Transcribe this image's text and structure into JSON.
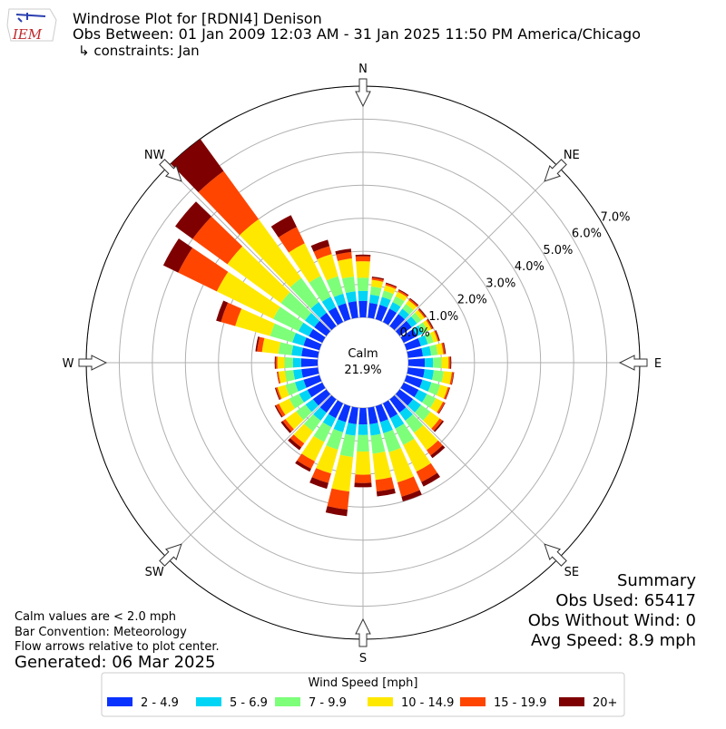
{
  "chart_data": {
    "type": "windrose",
    "title": "Windrose Plot for [RDNI4] Denison",
    "subtitle": "Obs Between: 01 Jan 2009 12:03 AM - 31 Jan 2025 11:50 PM America/Chicago",
    "constraints": "↳ constraints: Jan",
    "logo_text": "IEM",
    "x": [
      0,
      10,
      20,
      30,
      40,
      50,
      60,
      70,
      80,
      90,
      100,
      110,
      120,
      130,
      140,
      150,
      160,
      170,
      180,
      190,
      200,
      210,
      220,
      230,
      240,
      250,
      260,
      270,
      280,
      290,
      300,
      310,
      320,
      330,
      340,
      350
    ],
    "compass_labels": [
      {
        "value": 0,
        "label": "N"
      },
      {
        "value": 45,
        "label": "NE"
      },
      {
        "value": 90,
        "label": "E"
      },
      {
        "value": 135,
        "label": "SE"
      },
      {
        "value": 180,
        "label": "S"
      },
      {
        "value": 225,
        "label": "SW"
      },
      {
        "value": 270,
        "label": "W"
      },
      {
        "value": 315,
        "label": "NW"
      }
    ],
    "ylim": [
      0,
      7.0
    ],
    "yticks": [
      {
        "value": 0,
        "label": "0.0%"
      },
      {
        "value": 1,
        "label": "1.0%"
      },
      {
        "value": 2,
        "label": "2.0%"
      },
      {
        "value": 3,
        "label": "3.0%"
      },
      {
        "value": 4,
        "label": "4.0%"
      },
      {
        "value": 5,
        "label": "5.0%"
      },
      {
        "value": 6,
        "label": "6.0%"
      },
      {
        "value": 7,
        "label": "7.0%"
      }
    ],
    "calm": {
      "name": "Calm",
      "value": 21.9,
      "value_label": "21.9%"
    },
    "legend_title": "Wind Speed [mph]",
    "series": [
      {
        "name": "2 - 4.9",
        "color": "#0a32ff",
        "values": [
          0.5,
          0.45,
          0.45,
          0.45,
          0.45,
          0.45,
          0.45,
          0.45,
          0.45,
          0.5,
          0.5,
          0.5,
          0.5,
          0.5,
          0.5,
          0.5,
          0.5,
          0.5,
          0.5,
          0.5,
          0.5,
          0.5,
          0.5,
          0.5,
          0.5,
          0.5,
          0.5,
          0.5,
          0.5,
          0.5,
          0.45,
          0.45,
          0.5,
          0.5,
          0.5,
          0.5
        ]
      },
      {
        "name": "5 - 6.9",
        "color": "#00d5f5",
        "values": [
          0.3,
          0.25,
          0.25,
          0.22,
          0.2,
          0.2,
          0.2,
          0.22,
          0.25,
          0.25,
          0.28,
          0.28,
          0.28,
          0.3,
          0.3,
          0.35,
          0.35,
          0.35,
          0.32,
          0.35,
          0.32,
          0.3,
          0.3,
          0.28,
          0.28,
          0.27,
          0.25,
          0.25,
          0.3,
          0.35,
          0.35,
          0.35,
          0.4,
          0.35,
          0.3,
          0.3
        ]
      },
      {
        "name": "7 - 9.9",
        "color": "#7dff7a",
        "values": [
          0.4,
          0.25,
          0.2,
          0.2,
          0.18,
          0.16,
          0.16,
          0.18,
          0.2,
          0.25,
          0.3,
          0.28,
          0.3,
          0.35,
          0.45,
          0.55,
          0.6,
          0.55,
          0.5,
          0.65,
          0.55,
          0.5,
          0.4,
          0.35,
          0.33,
          0.3,
          0.25,
          0.25,
          0.4,
          0.7,
          0.85,
          0.9,
          0.9,
          0.7,
          0.55,
          0.45
        ]
      },
      {
        "name": "10 - 14.9",
        "color": "#ffe800",
        "values": [
          0.5,
          0.2,
          0.17,
          0.15,
          0.14,
          0.12,
          0.12,
          0.13,
          0.17,
          0.22,
          0.25,
          0.24,
          0.24,
          0.35,
          0.65,
          0.9,
          0.95,
          0.8,
          0.7,
          1.05,
          0.75,
          0.65,
          0.45,
          0.4,
          0.35,
          0.25,
          0.2,
          0.22,
          0.5,
          1.1,
          1.9,
          2.0,
          2.2,
          1.1,
          0.7,
          0.55
        ]
      },
      {
        "name": "15 - 19.9",
        "color": "#ff4500",
        "values": [
          0.15,
          0.06,
          0.05,
          0.05,
          0.05,
          0.04,
          0.04,
          0.04,
          0.05,
          0.05,
          0.05,
          0.05,
          0.06,
          0.1,
          0.2,
          0.35,
          0.45,
          0.35,
          0.25,
          0.55,
          0.3,
          0.25,
          0.15,
          0.1,
          0.1,
          0.05,
          0.04,
          0.05,
          0.15,
          0.45,
          1.3,
          1.3,
          1.8,
          0.55,
          0.25,
          0.2
        ]
      },
      {
        "name": "20+",
        "color": "#7f0000",
        "values": [
          0.05,
          0.04,
          0.03,
          0.03,
          0.03,
          0.03,
          0.03,
          0.03,
          0.03,
          0.03,
          0.02,
          0.02,
          0.02,
          0.05,
          0.1,
          0.15,
          0.15,
          0.15,
          0.13,
          0.2,
          0.18,
          0.1,
          0.1,
          0.07,
          0.04,
          0.03,
          0.01,
          0.03,
          0.05,
          0.15,
          0.5,
          0.65,
          1.2,
          0.4,
          0.2,
          0.1
        ]
      }
    ],
    "notes": [
      "Calm values are < 2.0 mph",
      "Bar Convention: Meteorology",
      "Flow arrows relative to plot center."
    ],
    "generated": "Generated: 06 Mar 2025",
    "summary": [
      "Summary",
      "Obs Used: 65417",
      "Obs Without Wind: 0",
      "Avg Speed: 8.9 mph"
    ]
  }
}
